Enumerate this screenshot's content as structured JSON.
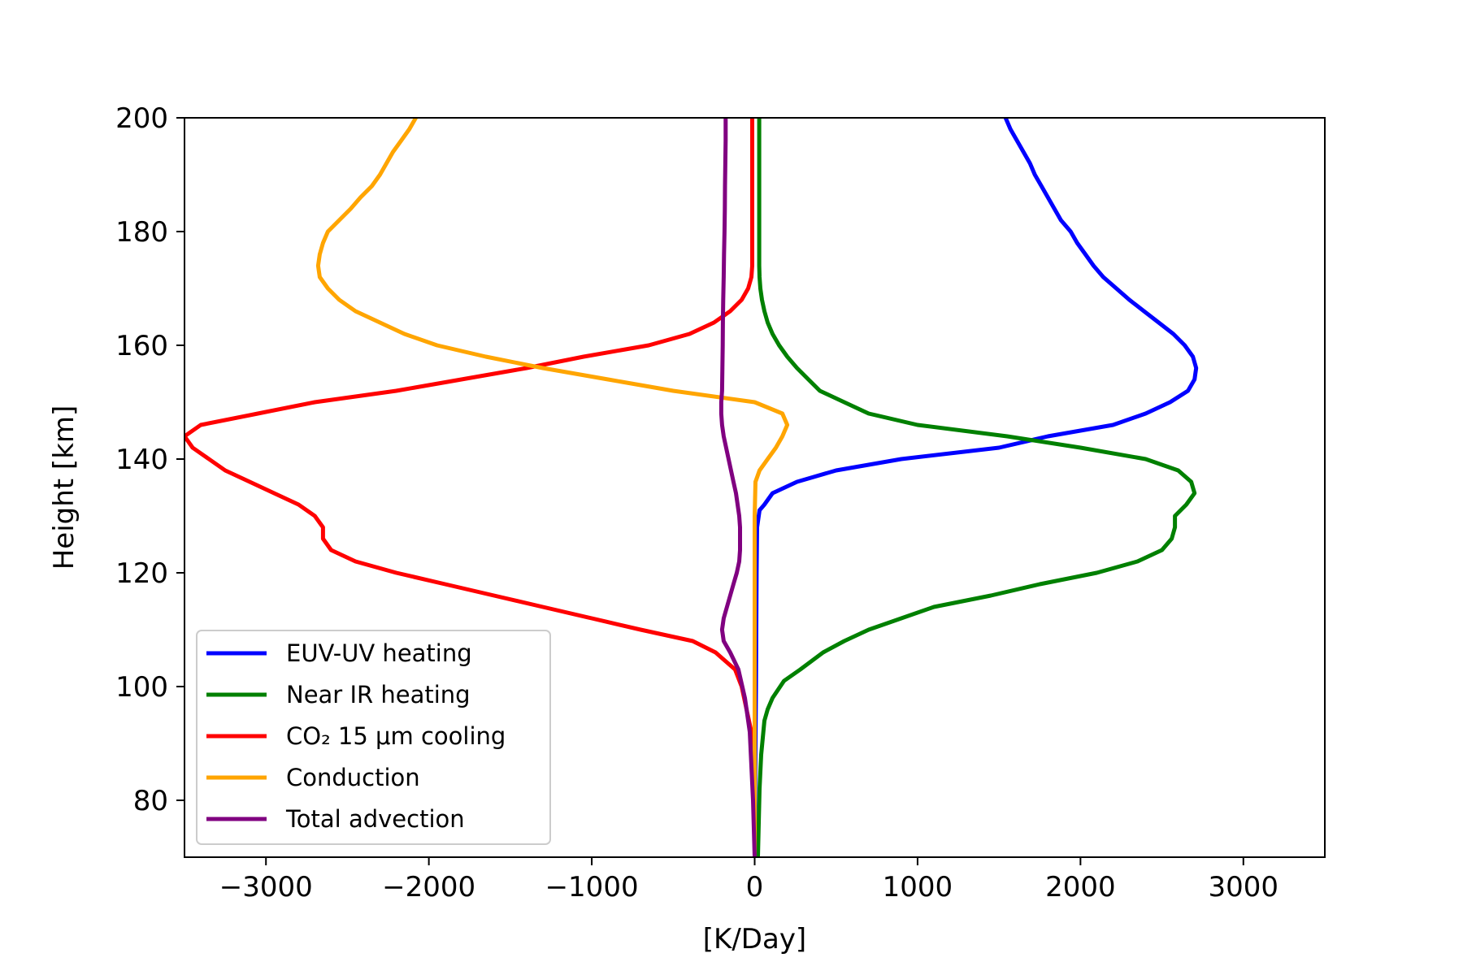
{
  "chart_data": {
    "type": "line",
    "title": "",
    "xlabel": "[K/Day]",
    "ylabel": "Height [km]",
    "xlim": [
      -3500,
      3500
    ],
    "ylim": [
      70,
      200
    ],
    "xticks": [
      -3000,
      -2000,
      -1000,
      0,
      1000,
      2000,
      3000
    ],
    "xtick_labels": [
      "−3000",
      "−2000",
      "−1000",
      "0",
      "1000",
      "2000",
      "3000"
    ],
    "yticks": [
      80,
      100,
      120,
      140,
      160,
      180,
      200
    ],
    "ytick_labels": [
      "80",
      "100",
      "120",
      "140",
      "160",
      "180",
      "200"
    ],
    "grid": false,
    "legend_position": "lower-left",
    "series": [
      {
        "name": "EUV-UV heating",
        "color": "#0000ff",
        "points": [
          [
            0,
            70
          ],
          [
            2,
            80
          ],
          [
            5,
            90
          ],
          [
            8,
            100
          ],
          [
            10,
            110
          ],
          [
            12,
            120
          ],
          [
            15,
            128
          ],
          [
            30,
            131
          ],
          [
            60,
            132
          ],
          [
            110,
            134
          ],
          [
            260,
            136
          ],
          [
            500,
            138
          ],
          [
            900,
            140
          ],
          [
            1500,
            142
          ],
          [
            1800,
            144
          ],
          [
            2200,
            146
          ],
          [
            2400,
            148
          ],
          [
            2550,
            150
          ],
          [
            2660,
            152
          ],
          [
            2700,
            154
          ],
          [
            2710,
            156
          ],
          [
            2690,
            158
          ],
          [
            2640,
            160
          ],
          [
            2570,
            162
          ],
          [
            2480,
            164
          ],
          [
            2390,
            166
          ],
          [
            2300,
            168
          ],
          [
            2220,
            170
          ],
          [
            2140,
            172
          ],
          [
            2080,
            174
          ],
          [
            2030,
            176
          ],
          [
            1980,
            178
          ],
          [
            1940,
            180
          ],
          [
            1880,
            182
          ],
          [
            1840,
            184
          ],
          [
            1800,
            186
          ],
          [
            1760,
            188
          ],
          [
            1720,
            190
          ],
          [
            1690,
            192
          ],
          [
            1650,
            194
          ],
          [
            1610,
            196
          ],
          [
            1570,
            198
          ],
          [
            1540,
            200
          ]
        ]
      },
      {
        "name": "Near IR heating",
        "color": "#008000",
        "points": [
          [
            20,
            70
          ],
          [
            30,
            82
          ],
          [
            40,
            88
          ],
          [
            60,
            94
          ],
          [
            80,
            96
          ],
          [
            110,
            98
          ],
          [
            180,
            101
          ],
          [
            280,
            103
          ],
          [
            420,
            106
          ],
          [
            550,
            108
          ],
          [
            700,
            110
          ],
          [
            900,
            112
          ],
          [
            1100,
            114
          ],
          [
            1450,
            116
          ],
          [
            1750,
            118
          ],
          [
            2100,
            120
          ],
          [
            2350,
            122
          ],
          [
            2500,
            124
          ],
          [
            2560,
            126
          ],
          [
            2580,
            128
          ],
          [
            2580,
            130
          ],
          [
            2650,
            132
          ],
          [
            2700,
            134
          ],
          [
            2680,
            136
          ],
          [
            2600,
            138
          ],
          [
            2400,
            140
          ],
          [
            2000,
            142
          ],
          [
            1550,
            144
          ],
          [
            1000,
            146
          ],
          [
            700,
            148
          ],
          [
            550,
            150
          ],
          [
            400,
            152
          ],
          [
            330,
            154
          ],
          [
            260,
            156
          ],
          [
            200,
            158
          ],
          [
            150,
            160
          ],
          [
            110,
            162
          ],
          [
            80,
            164
          ],
          [
            60,
            166
          ],
          [
            45,
            168
          ],
          [
            35,
            170
          ],
          [
            30,
            172
          ],
          [
            28,
            174
          ],
          [
            28,
            180
          ],
          [
            28,
            190
          ],
          [
            28,
            200
          ]
        ]
      },
      {
        "name": "CO₂ 15 μm cooling",
        "color": "#ff0000",
        "points": [
          [
            0,
            70
          ],
          [
            0,
            80
          ],
          [
            -20,
            92
          ],
          [
            -50,
            96
          ],
          [
            -80,
            100
          ],
          [
            -120,
            103
          ],
          [
            -240,
            106
          ],
          [
            -380,
            108
          ],
          [
            -700,
            110
          ],
          [
            -1000,
            112
          ],
          [
            -1300,
            114
          ],
          [
            -1600,
            116
          ],
          [
            -1900,
            118
          ],
          [
            -2200,
            120
          ],
          [
            -2450,
            122
          ],
          [
            -2600,
            124
          ],
          [
            -2650,
            126
          ],
          [
            -2650,
            128
          ],
          [
            -2700,
            130
          ],
          [
            -2800,
            132
          ],
          [
            -2950,
            134
          ],
          [
            -3100,
            136
          ],
          [
            -3250,
            138
          ],
          [
            -3350,
            140
          ],
          [
            -3450,
            142
          ],
          [
            -3500,
            144
          ],
          [
            -3400,
            146
          ],
          [
            -3050,
            148
          ],
          [
            -2700,
            150
          ],
          [
            -2200,
            152
          ],
          [
            -1800,
            154
          ],
          [
            -1400,
            156
          ],
          [
            -1050,
            158
          ],
          [
            -650,
            160
          ],
          [
            -400,
            162
          ],
          [
            -250,
            164
          ],
          [
            -150,
            166
          ],
          [
            -80,
            168
          ],
          [
            -40,
            170
          ],
          [
            -20,
            172
          ],
          [
            -15,
            174
          ],
          [
            -15,
            180
          ],
          [
            -15,
            190
          ],
          [
            -15,
            200
          ]
        ]
      },
      {
        "name": "Conduction",
        "color": "#ffa500",
        "points": [
          [
            0,
            70
          ],
          [
            0,
            80
          ],
          [
            0,
            90
          ],
          [
            0,
            100
          ],
          [
            0,
            110
          ],
          [
            0,
            120
          ],
          [
            0,
            130
          ],
          [
            5,
            136
          ],
          [
            30,
            138
          ],
          [
            80,
            140
          ],
          [
            130,
            142
          ],
          [
            170,
            144
          ],
          [
            200,
            146
          ],
          [
            170,
            148
          ],
          [
            0,
            150
          ],
          [
            -500,
            152
          ],
          [
            -900,
            154
          ],
          [
            -1300,
            156
          ],
          [
            -1650,
            158
          ],
          [
            -1950,
            160
          ],
          [
            -2150,
            162
          ],
          [
            -2300,
            164
          ],
          [
            -2450,
            166
          ],
          [
            -2550,
            168
          ],
          [
            -2620,
            170
          ],
          [
            -2670,
            172
          ],
          [
            -2680,
            174
          ],
          [
            -2670,
            176
          ],
          [
            -2650,
            178
          ],
          [
            -2620,
            180
          ],
          [
            -2550,
            182
          ],
          [
            -2480,
            184
          ],
          [
            -2420,
            186
          ],
          [
            -2350,
            188
          ],
          [
            -2300,
            190
          ],
          [
            -2260,
            192
          ],
          [
            -2220,
            194
          ],
          [
            -2170,
            196
          ],
          [
            -2120,
            198
          ],
          [
            -2080,
            200
          ]
        ]
      },
      {
        "name": "Total advection",
        "color": "#800080",
        "points": [
          [
            0,
            70
          ],
          [
            -5,
            75
          ],
          [
            -10,
            80
          ],
          [
            -20,
            86
          ],
          [
            -30,
            92
          ],
          [
            -60,
            98
          ],
          [
            -100,
            103
          ],
          [
            -150,
            106
          ],
          [
            -190,
            108
          ],
          [
            -200,
            110
          ],
          [
            -190,
            112
          ],
          [
            -170,
            114
          ],
          [
            -150,
            116
          ],
          [
            -130,
            118
          ],
          [
            -110,
            120
          ],
          [
            -95,
            122
          ],
          [
            -90,
            124
          ],
          [
            -90,
            126
          ],
          [
            -90,
            128
          ],
          [
            -95,
            130
          ],
          [
            -105,
            132
          ],
          [
            -115,
            134
          ],
          [
            -130,
            136
          ],
          [
            -145,
            138
          ],
          [
            -160,
            140
          ],
          [
            -175,
            142
          ],
          [
            -190,
            144
          ],
          [
            -200,
            146
          ],
          [
            -205,
            148
          ],
          [
            -205,
            150
          ],
          [
            -200,
            152
          ],
          [
            -198,
            156
          ],
          [
            -196,
            160
          ],
          [
            -195,
            164
          ],
          [
            -193,
            168
          ],
          [
            -190,
            172
          ],
          [
            -188,
            176
          ],
          [
            -185,
            180
          ],
          [
            -183,
            184
          ],
          [
            -182,
            188
          ],
          [
            -180,
            192
          ],
          [
            -178,
            196
          ],
          [
            -178,
            200
          ]
        ]
      }
    ]
  }
}
